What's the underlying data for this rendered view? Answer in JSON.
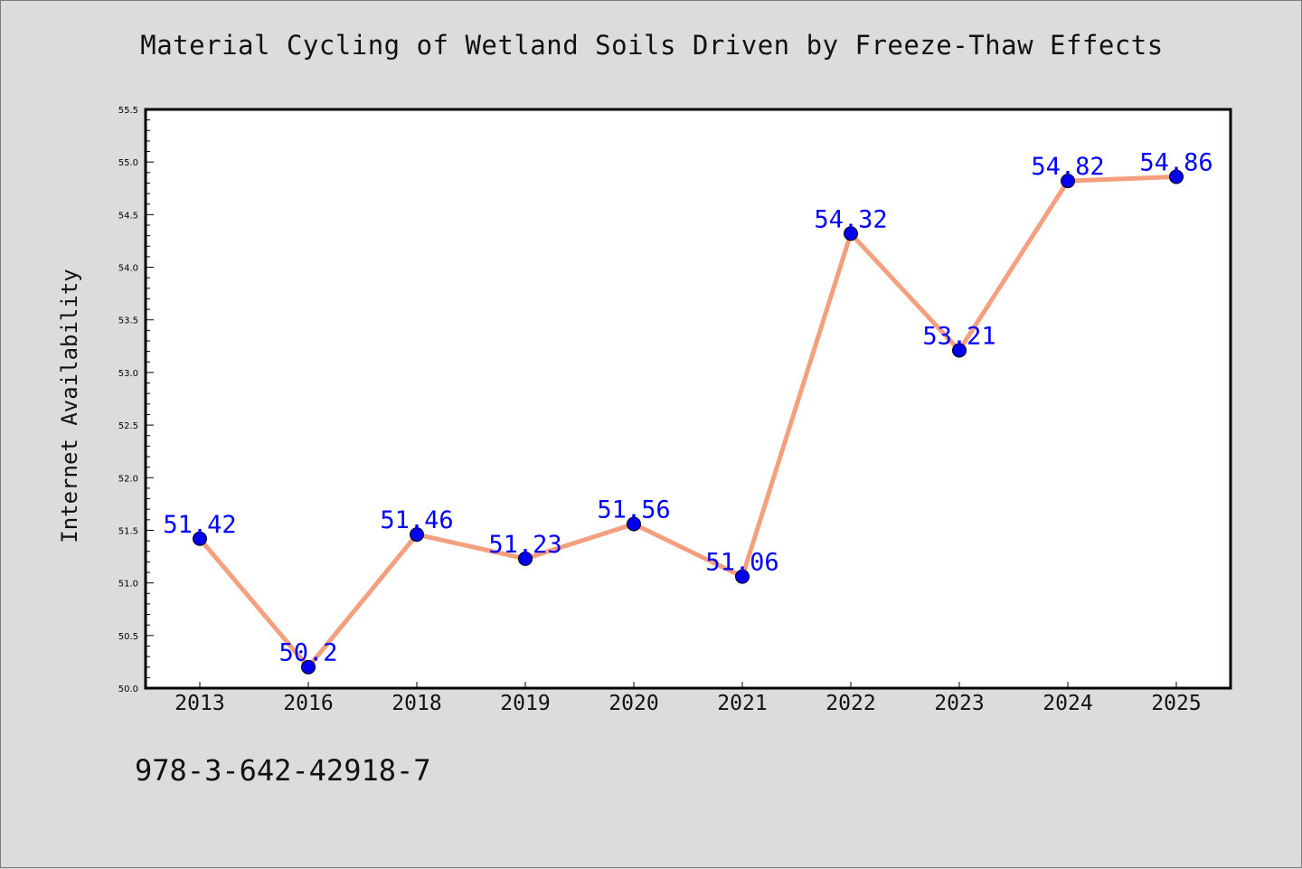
{
  "chart_data": {
    "type": "line",
    "title": "Material Cycling of Wetland Soils Driven by Freeze-Thaw Effects",
    "xlabel": "",
    "ylabel": "Internet Availability",
    "categories": [
      "2013",
      "2016",
      "2018",
      "2019",
      "2020",
      "2021",
      "2022",
      "2023",
      "2024",
      "2025"
    ],
    "series": [
      {
        "values": [
          51.42,
          50.2,
          51.46,
          51.23,
          51.56,
          51.06,
          54.32,
          53.21,
          54.82,
          54.86
        ],
        "data_labels": [
          "51.42",
          "50.2",
          "51.46",
          "51.23",
          "51.56",
          "51.06",
          "54.32",
          "53.21",
          "54.82",
          "54.86"
        ],
        "line_color": "#f4a07e",
        "marker_color": "#0000ee",
        "label_color": "#0000ff"
      }
    ],
    "ylim": [
      50.0,
      55.5
    ],
    "yticks": [
      "50.0",
      "50.5",
      "51.0",
      "51.5",
      "52.0",
      "52.5",
      "53.0",
      "53.5",
      "54.0",
      "54.5",
      "55.0",
      "55.5"
    ],
    "grid": false,
    "legend": "none",
    "plot_background": "#ffffff"
  },
  "footer": {
    "code": "978-3-642-42918-7"
  }
}
